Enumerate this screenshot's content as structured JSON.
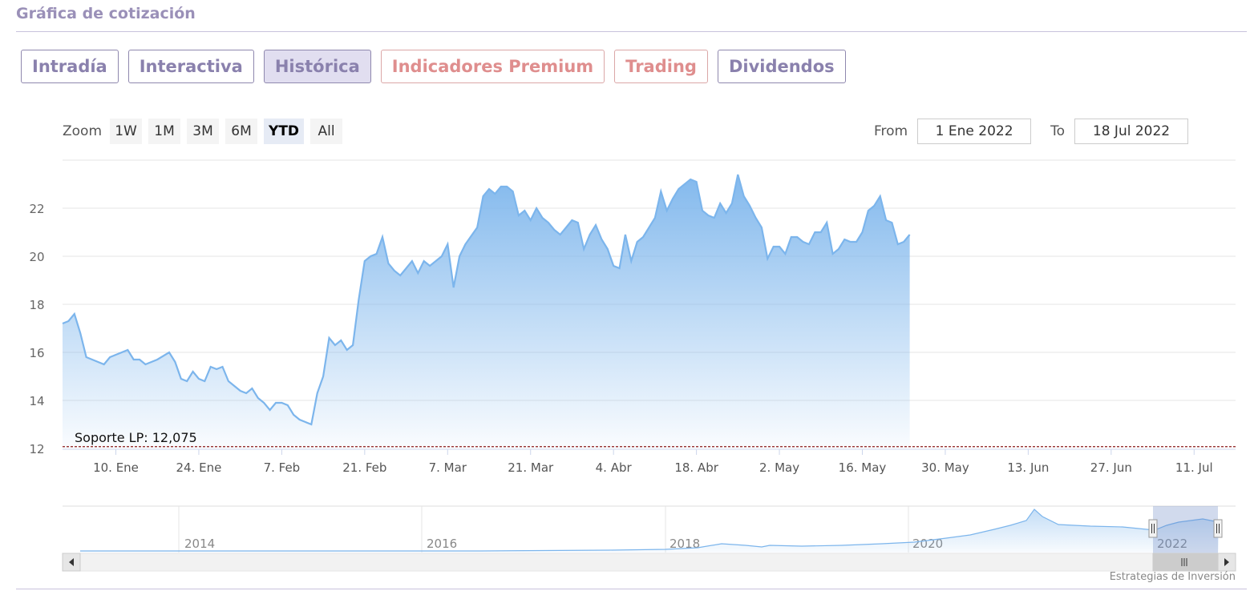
{
  "page": {
    "title": "Gráfica de cotización",
    "credit": "Estrategias de Inversión"
  },
  "tabs": [
    {
      "label": "Intradía",
      "active": false,
      "premium": false
    },
    {
      "label": "Interactiva",
      "active": false,
      "premium": false
    },
    {
      "label": "Histórica",
      "active": true,
      "premium": false
    },
    {
      "label": "Indicadores Premium",
      "active": false,
      "premium": true
    },
    {
      "label": "Trading",
      "active": false,
      "premium": true
    },
    {
      "label": "Dividendos",
      "active": false,
      "premium": false
    }
  ],
  "zoom": {
    "label": "Zoom",
    "buttons": [
      {
        "label": "1W",
        "active": false
      },
      {
        "label": "1M",
        "active": false
      },
      {
        "label": "3M",
        "active": false
      },
      {
        "label": "6M",
        "active": false
      },
      {
        "label": "YTD",
        "active": true
      },
      {
        "label": "All",
        "active": false
      }
    ]
  },
  "range": {
    "from_label": "From",
    "from_value": "1 Ene 2022",
    "to_label": "To",
    "to_value": "18 Jul 2022"
  },
  "colors": {
    "line": "#7cb5ec",
    "support": "#8b1a1a",
    "accent": "#8a81ad",
    "premium": "#df8e8e"
  },
  "chart_data": {
    "type": "area",
    "ylim": [
      12,
      24
    ],
    "yticks": [
      12,
      14,
      16,
      18,
      20,
      22
    ],
    "xticks": [
      {
        "day": 9,
        "label": "10. Ene"
      },
      {
        "day": 23,
        "label": "24. Ene"
      },
      {
        "day": 37,
        "label": "7. Feb"
      },
      {
        "day": 51,
        "label": "21. Feb"
      },
      {
        "day": 65,
        "label": "7. Mar"
      },
      {
        "day": 79,
        "label": "21. Mar"
      },
      {
        "day": 93,
        "label": "4. Abr"
      },
      {
        "day": 107,
        "label": "18. Abr"
      },
      {
        "day": 121,
        "label": "2. May"
      },
      {
        "day": 135,
        "label": "16. May"
      },
      {
        "day": 149,
        "label": "30. May"
      },
      {
        "day": 163,
        "label": "13. Jun"
      },
      {
        "day": 177,
        "label": "27. Jun"
      },
      {
        "day": 191,
        "label": "11. Jul"
      }
    ],
    "xrange": [
      0,
      198
    ],
    "support": {
      "label": "Soporte LP: 12,075",
      "value": 12.075
    },
    "series": [
      {
        "points": [
          [
            0,
            17.2
          ],
          [
            1,
            17.3
          ],
          [
            2,
            17.6
          ],
          [
            3,
            16.8
          ],
          [
            4,
            15.8
          ],
          [
            6,
            15.6
          ],
          [
            7,
            15.5
          ],
          [
            8,
            15.8
          ],
          [
            9,
            15.9
          ],
          [
            11,
            16.1
          ],
          [
            12,
            15.7
          ],
          [
            13,
            15.7
          ],
          [
            14,
            15.5
          ],
          [
            15,
            15.6
          ],
          [
            16,
            15.7
          ],
          [
            18,
            16.0
          ],
          [
            19,
            15.6
          ],
          [
            20,
            14.9
          ],
          [
            21,
            14.8
          ],
          [
            22,
            15.2
          ],
          [
            23,
            14.9
          ],
          [
            24,
            14.8
          ],
          [
            25,
            15.4
          ],
          [
            26,
            15.3
          ],
          [
            27,
            15.4
          ],
          [
            28,
            14.8
          ],
          [
            29,
            14.6
          ],
          [
            30,
            14.4
          ],
          [
            31,
            14.3
          ],
          [
            32,
            14.5
          ],
          [
            33,
            14.1
          ],
          [
            34,
            13.9
          ],
          [
            35,
            13.6
          ],
          [
            36,
            13.9
          ],
          [
            37,
            13.9
          ],
          [
            38,
            13.8
          ],
          [
            39,
            13.4
          ],
          [
            40,
            13.2
          ],
          [
            41,
            13.1
          ],
          [
            42,
            13.0
          ],
          [
            43,
            14.3
          ],
          [
            44,
            15.0
          ],
          [
            45,
            16.6
          ],
          [
            46,
            16.3
          ],
          [
            47,
            16.5
          ],
          [
            48,
            16.1
          ],
          [
            49,
            16.3
          ],
          [
            50,
            18.2
          ],
          [
            51,
            19.8
          ],
          [
            52,
            20.0
          ],
          [
            53,
            20.1
          ],
          [
            54,
            20.8
          ],
          [
            55,
            19.7
          ],
          [
            56,
            19.4
          ],
          [
            57,
            19.2
          ],
          [
            58,
            19.5
          ],
          [
            59,
            19.8
          ],
          [
            60,
            19.3
          ],
          [
            61,
            19.8
          ],
          [
            62,
            19.6
          ],
          [
            63,
            19.8
          ],
          [
            64,
            20.0
          ],
          [
            65,
            20.5
          ],
          [
            66,
            18.7
          ],
          [
            67,
            20.0
          ],
          [
            68,
            20.5
          ],
          [
            70,
            21.2
          ],
          [
            71,
            22.5
          ],
          [
            72,
            22.8
          ],
          [
            73,
            22.6
          ],
          [
            74,
            22.9
          ],
          [
            75,
            22.9
          ],
          [
            76,
            22.7
          ],
          [
            77,
            21.7
          ],
          [
            78,
            21.9
          ],
          [
            79,
            21.5
          ],
          [
            80,
            22.0
          ],
          [
            81,
            21.6
          ],
          [
            82,
            21.4
          ],
          [
            83,
            21.1
          ],
          [
            84,
            20.9
          ],
          [
            85,
            21.2
          ],
          [
            86,
            21.5
          ],
          [
            87,
            21.4
          ],
          [
            88,
            20.3
          ],
          [
            89,
            20.9
          ],
          [
            90,
            21.3
          ],
          [
            91,
            20.7
          ],
          [
            92,
            20.3
          ],
          [
            93,
            19.6
          ],
          [
            94,
            19.5
          ],
          [
            95,
            20.9
          ],
          [
            96,
            19.8
          ],
          [
            97,
            20.6
          ],
          [
            98,
            20.8
          ],
          [
            99,
            21.2
          ],
          [
            100,
            21.6
          ],
          [
            101,
            22.7
          ],
          [
            102,
            21.9
          ],
          [
            103,
            22.4
          ],
          [
            104,
            22.8
          ],
          [
            105,
            23.0
          ],
          [
            106,
            23.2
          ],
          [
            107,
            23.1
          ],
          [
            108,
            21.9
          ],
          [
            109,
            21.7
          ],
          [
            110,
            21.6
          ],
          [
            111,
            22.2
          ],
          [
            112,
            21.8
          ],
          [
            113,
            22.2
          ],
          [
            114,
            23.4
          ],
          [
            115,
            22.5
          ],
          [
            116,
            22.1
          ],
          [
            117,
            21.6
          ],
          [
            118,
            21.2
          ],
          [
            119,
            19.9
          ],
          [
            120,
            20.4
          ],
          [
            121,
            20.4
          ],
          [
            122,
            20.1
          ],
          [
            123,
            20.8
          ],
          [
            124,
            20.8
          ],
          [
            125,
            20.6
          ],
          [
            126,
            20.5
          ],
          [
            127,
            21.0
          ],
          [
            128,
            21.0
          ],
          [
            129,
            21.4
          ],
          [
            130,
            20.1
          ],
          [
            131,
            20.3
          ],
          [
            132,
            20.7
          ],
          [
            133,
            20.6
          ],
          [
            134,
            20.6
          ],
          [
            135,
            21.0
          ],
          [
            136,
            21.9
          ],
          [
            137,
            22.1
          ],
          [
            138,
            22.5
          ],
          [
            139,
            21.5
          ],
          [
            140,
            21.4
          ],
          [
            141,
            20.5
          ],
          [
            142,
            20.6
          ],
          [
            143,
            20.9
          ]
        ]
      }
    ],
    "navigator": {
      "labels": [
        "2014",
        "2016",
        "2018",
        "2020",
        "2022"
      ]
    }
  }
}
